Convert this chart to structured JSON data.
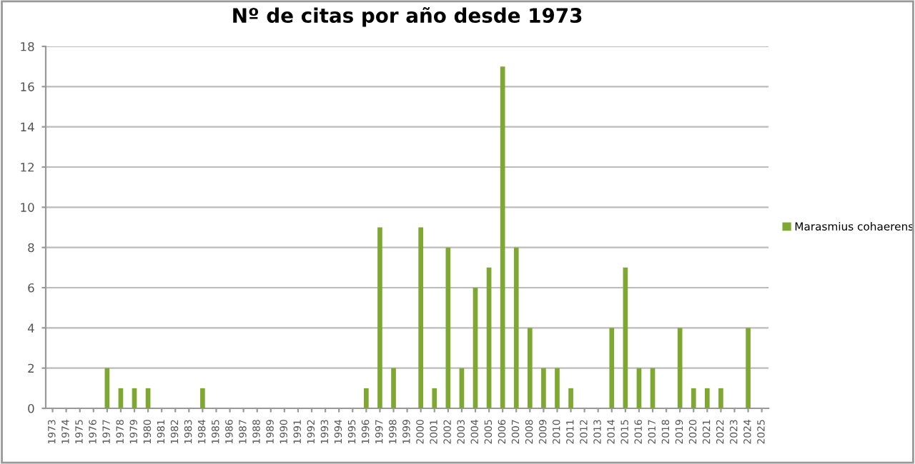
{
  "chart_data": {
    "type": "bar",
    "title": "Nº de citas por año desde 1973",
    "categories": [
      "1973",
      "1974",
      "1975",
      "1976",
      "1977",
      "1978",
      "1979",
      "1980",
      "1981",
      "1982",
      "1983",
      "1984",
      "1985",
      "1986",
      "1987",
      "1988",
      "1989",
      "1990",
      "1991",
      "1992",
      "1993",
      "1994",
      "1995",
      "1996",
      "1997",
      "1998",
      "1999",
      "2000",
      "2001",
      "2002",
      "2003",
      "2004",
      "2005",
      "2006",
      "2007",
      "2008",
      "2009",
      "2010",
      "2011",
      "2012",
      "2013",
      "2014",
      "2015",
      "2016",
      "2017",
      "2018",
      "2019",
      "2020",
      "2021",
      "2022",
      "2023",
      "2024",
      "2025"
    ],
    "series": [
      {
        "name": "Marasmius cohaerens",
        "color": "#7fa832",
        "values": [
          0,
          0,
          0,
          0,
          2,
          1,
          1,
          1,
          0,
          0,
          0,
          1,
          0,
          0,
          0,
          0,
          0,
          0,
          0,
          0,
          0,
          0,
          0,
          1,
          9,
          2,
          0,
          9,
          1,
          8,
          2,
          6,
          7,
          17,
          8,
          4,
          2,
          2,
          1,
          0,
          0,
          4,
          7,
          2,
          2,
          0,
          4,
          1,
          1,
          1,
          0,
          4,
          0
        ]
      }
    ],
    "ylim": [
      0,
      18
    ],
    "yticks": [
      0,
      2,
      4,
      6,
      8,
      10,
      12,
      14,
      16,
      18
    ],
    "grid": "y",
    "legend": "right"
  }
}
